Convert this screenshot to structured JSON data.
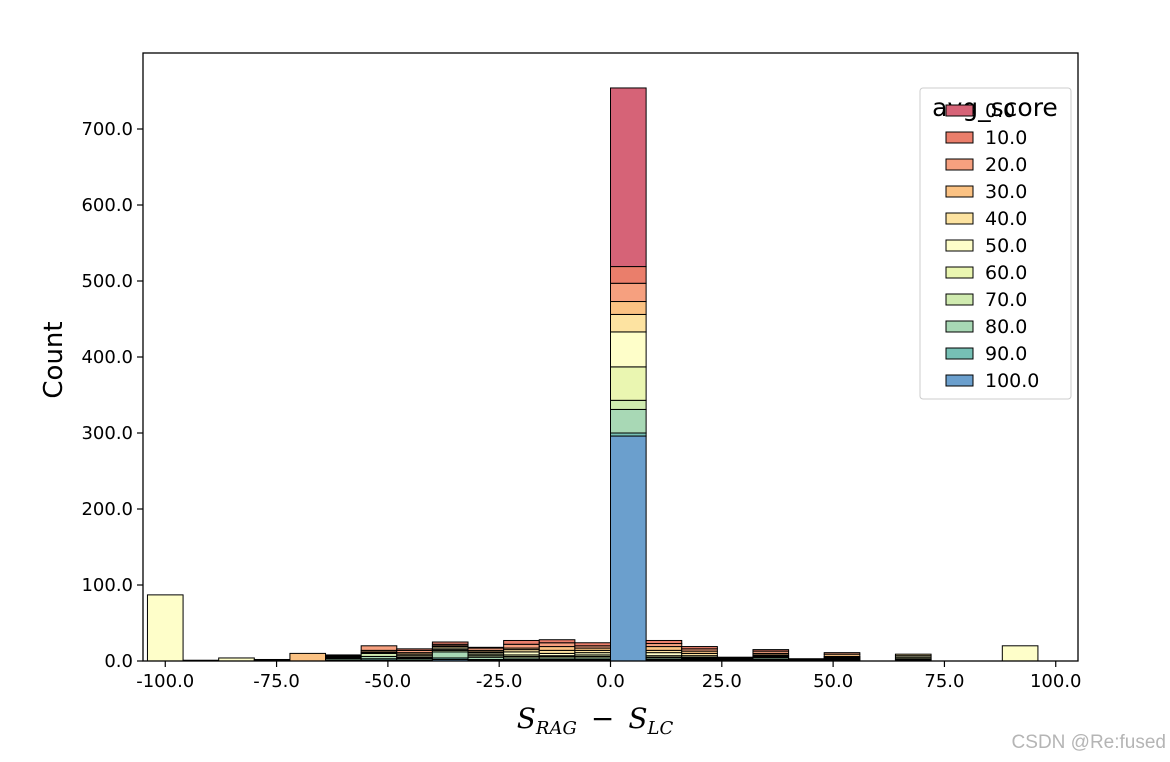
{
  "watermark": "CSDN @Re:fused",
  "chart_data": {
    "type": "bar",
    "stacked": true,
    "title": "",
    "ylabel": "Count",
    "xlabel": {
      "s1": "S",
      "s1_sub": "RAG",
      "op": "−",
      "s2": "S",
      "s2_sub": "LC"
    },
    "xlim": [
      -105,
      105
    ],
    "ylim": [
      0,
      800
    ],
    "xticks": [
      -100,
      -75,
      -50,
      -25,
      0,
      25,
      50,
      75,
      100
    ],
    "xtick_labels": [
      "-100.0",
      "-75.0",
      "-50.0",
      "-25.0",
      "0.0",
      "25.0",
      "50.0",
      "75.0",
      "100.0"
    ],
    "yticks": [
      0,
      100,
      200,
      300,
      400,
      500,
      600,
      700
    ],
    "ytick_labels": [
      "0.0",
      "100.0",
      "200.0",
      "300.0",
      "400.0",
      "500.0",
      "600.0",
      "700.0"
    ],
    "grid": false,
    "legend": {
      "title": "avg_score",
      "placement": "top-right"
    },
    "bin_width": 8,
    "bin_edges": [
      -104,
      -96,
      -88,
      -80,
      -72,
      -64,
      -56,
      -48,
      -40,
      -32,
      -24,
      -16,
      -8,
      0,
      8,
      16,
      24,
      32,
      40,
      48,
      56,
      64,
      72,
      80,
      88,
      96,
      104
    ],
    "series": [
      {
        "name": "0.0",
        "color": "#d66377",
        "counts": [
          0,
          0,
          0,
          0,
          0,
          0,
          0,
          0,
          0,
          0,
          0,
          0,
          0,
          235,
          0,
          0,
          0,
          0,
          0,
          0,
          0,
          0,
          0,
          0,
          0,
          0
        ]
      },
      {
        "name": "10.0",
        "color": "#ea7e6b",
        "counts": [
          0,
          0,
          0,
          0,
          0,
          0,
          0,
          2,
          3,
          1,
          5,
          4,
          4,
          22,
          4,
          3,
          0,
          2,
          0,
          0,
          0,
          0,
          0,
          0,
          0,
          0
        ]
      },
      {
        "name": "20.0",
        "color": "#f6a07f",
        "counts": [
          0,
          0,
          0,
          0,
          0,
          1,
          6,
          3,
          2,
          3,
          5,
          5,
          3,
          24,
          4,
          3,
          1,
          3,
          1,
          2,
          0,
          0,
          0,
          0,
          0,
          0
        ]
      },
      {
        "name": "30.0",
        "color": "#fbc283",
        "counts": [
          0,
          0,
          0,
          1,
          10,
          1,
          2,
          2,
          1,
          2,
          2,
          5,
          3,
          17,
          5,
          3,
          1,
          2,
          0,
          3,
          0,
          0,
          0,
          0,
          0,
          0
        ]
      },
      {
        "name": "40.0",
        "color": "#fde3a1",
        "counts": [
          0,
          0,
          0,
          1,
          0,
          1,
          1,
          2,
          2,
          1,
          3,
          4,
          3,
          23,
          3,
          3,
          0,
          1,
          0,
          1,
          0,
          2,
          0,
          0,
          0,
          0
        ]
      },
      {
        "name": "50.0",
        "color": "#fefec9",
        "counts": [
          87,
          1,
          4,
          0,
          0,
          0,
          0,
          2,
          2,
          2,
          4,
          3,
          3,
          46,
          4,
          2,
          1,
          1,
          0,
          0,
          0,
          2,
          0,
          0,
          20,
          0
        ]
      },
      {
        "name": "60.0",
        "color": "#eaf6b1",
        "counts": [
          0,
          0,
          0,
          0,
          0,
          1,
          1,
          1,
          1,
          2,
          2,
          1,
          2,
          44,
          2,
          1,
          0,
          1,
          0,
          1,
          0,
          2,
          0,
          0,
          0,
          0
        ]
      },
      {
        "name": "70.0",
        "color": "#d0ebb0",
        "counts": [
          0,
          0,
          0,
          0,
          0,
          1,
          4,
          1,
          2,
          2,
          2,
          2,
          2,
          12,
          1,
          1,
          1,
          1,
          0,
          1,
          0,
          1,
          0,
          0,
          0,
          0
        ]
      },
      {
        "name": "80.0",
        "color": "#a8d8b5",
        "counts": [
          0,
          0,
          0,
          0,
          0,
          2,
          3,
          2,
          8,
          3,
          2,
          2,
          2,
          31,
          2,
          1,
          1,
          2,
          1,
          1,
          0,
          0,
          0,
          0,
          0,
          0
        ]
      },
      {
        "name": "90.0",
        "color": "#76c0b5",
        "counts": [
          0,
          0,
          0,
          0,
          0,
          1,
          2,
          1,
          2,
          1,
          1,
          1,
          1,
          4,
          1,
          1,
          0,
          1,
          1,
          1,
          0,
          1,
          0,
          0,
          0,
          0
        ]
      },
      {
        "name": "100.0",
        "color": "#6b9fcd",
        "counts": [
          0,
          0,
          0,
          0,
          0,
          0,
          1,
          0,
          2,
          1,
          1,
          1,
          1,
          296,
          1,
          1,
          0,
          1,
          0,
          1,
          0,
          1,
          0,
          0,
          0,
          0
        ]
      }
    ]
  }
}
